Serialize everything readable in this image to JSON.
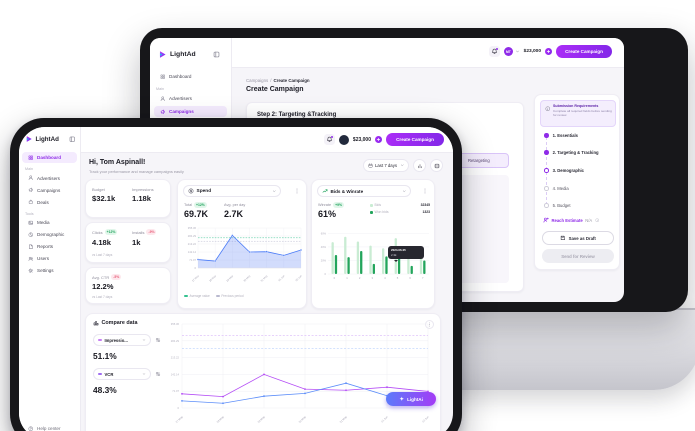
{
  "colors": {
    "accent_purple": "#8f2be8",
    "green": "#1fa35c",
    "red": "#e85d78",
    "area_blue": "#4a7bf7",
    "bar_light": "#c9ecd3",
    "bar_dark": "#23a55c",
    "line_purple": "#b44df5",
    "line_blue": "#5d8ef9"
  },
  "back": {
    "logo": "LightAd",
    "sidebar": {
      "dashboard": "Dashboard",
      "section_main": "Main",
      "advertisers": "Advertisers",
      "campaigns": "Campaigns"
    },
    "topbar": {
      "avatar": "MT",
      "balance": "$23,000",
      "create": "Create Campaign"
    },
    "breadcrumb": {
      "parent": "Campaigns",
      "sep": "/",
      "current": "Create Campaign"
    },
    "page_title": "Create Campaign",
    "step_title": "Step 2: Targeting &Tracking",
    "form_value": "Retargeting",
    "panel": {
      "title": "Submission Requirements",
      "desc": "Complete all required fields before sending for review.",
      "steps": [
        {
          "label": "1. Essentials",
          "state": "done"
        },
        {
          "label": "2. Targeting & Tracking",
          "state": "done"
        },
        {
          "label": "3. Demographic",
          "state": "current"
        },
        {
          "label": "4. Media",
          "state": "todo"
        },
        {
          "label": "5. Budget",
          "state": "todo"
        }
      ],
      "reach_label": "Reach Estimate",
      "reach_value": "N/A",
      "save_draft": "Save as Draft",
      "send_review": "Send for Review"
    }
  },
  "front": {
    "logo": "LightAd",
    "sidebar": {
      "dashboard": "Dashboard",
      "section_main": "Main",
      "advertisers": "Advertisers",
      "campaigns": "Campaigns",
      "deals": "Deals",
      "section_tools": "Tools",
      "media": "Media",
      "demographic": "Demographic",
      "reports": "Reports",
      "users": "Users",
      "settings": "Settings",
      "help": "Help center"
    },
    "topbar": {
      "balance": "$23,000",
      "create": "Create Campaign"
    },
    "greeting": {
      "title": "Hi, Tom Aspinall!",
      "subtitle": "Track your performance and manage campaigns easily"
    },
    "filter_range": "Last 7 days",
    "stats": {
      "budget_label": "Budget",
      "budget_value": "$32.1k",
      "impressions_label": "Impressions",
      "impressions_value": "1.18k",
      "clicks_label": "Clicks",
      "clicks_badge": "+12%",
      "clicks_value": "4.18k",
      "installs_label": "Installs",
      "installs_badge": "-9%",
      "installs_value": "1k",
      "vs_last": "vs Last 7 days",
      "ctr_label": "Avg. CTR",
      "ctr_badge": "-5%",
      "ctr_value": "12.2%"
    },
    "spend": {
      "title": "Spend",
      "total_label": "Total",
      "total_badge": "+12%",
      "total_value": "69.7K",
      "avg_label": "Avg. per day",
      "avg_value": "2.7K",
      "legend_avg": "Average value",
      "legend_prev": "Previous period"
    },
    "bids": {
      "title": "Bids & Winrate",
      "winrate_label": "Winrate",
      "winrate_badge": "+9%",
      "winrate_value": "61%",
      "legend_bids": "Bids",
      "bids_total": "32345",
      "legend_won": "Won bids",
      "won_total": "1323",
      "tooltip_date": "2024-06-05",
      "tooltip_value": "2.3k"
    },
    "compare": {
      "title": "Compare data",
      "metric1": "Impressio...",
      "metric1_value": "51.1%",
      "metric2": "VCR",
      "metric2_value": "48.3%",
      "ai_label": "LightAi"
    }
  },
  "chart_data": [
    {
      "id": "spend",
      "type": "area",
      "title": "Spend",
      "x": [
        "27 May",
        "28 May",
        "29 May",
        "30 May",
        "31 May",
        "01 Jun",
        "02 Jun"
      ],
      "values": [
        75,
        62,
        290,
        142,
        145,
        112,
        160
      ],
      "yticks": [
        0,
        71.07,
        142.14,
        213.22,
        284.29,
        355.36
      ],
      "ylim": [
        0,
        355.36
      ],
      "avg_line": 268,
      "prev_line": 238,
      "legend": [
        "Average value",
        "Previous period"
      ],
      "grid": true,
      "legend_position": "bottom"
    },
    {
      "id": "bids",
      "type": "bar",
      "title": "Bids & Winrate",
      "categories": [
        "0",
        "1",
        "2",
        "3",
        "4",
        "5",
        "6",
        "7"
      ],
      "series": [
        {
          "name": "Bids",
          "total": 32345,
          "values": [
            47,
            55,
            48,
            42,
            38,
            53,
            33,
            40
          ]
        },
        {
          "name": "Won bids",
          "total": 1323,
          "values": [
            28,
            25,
            34,
            15,
            26,
            30,
            12,
            20
          ]
        }
      ],
      "yticks": [
        0,
        20,
        40,
        60
      ],
      "ylim": [
        0,
        65
      ],
      "y_suffix": "%",
      "tooltip": {
        "date": "2024-06-05",
        "value": "2.3k"
      },
      "grid": true,
      "legend_position": "top-right"
    },
    {
      "id": "compare",
      "type": "line",
      "title": "Compare data",
      "x": [
        "27 May",
        "28 May",
        "29 May",
        "30 May",
        "31 May",
        "01 Jun",
        "02 Jun"
      ],
      "series": [
        {
          "name": "Impressions",
          "color": "#b44df5",
          "values": [
            60,
            48,
            142,
            80,
            75,
            88,
            70
          ]
        },
        {
          "name": "VCR",
          "color": "#5d8ef9",
          "values": [
            30,
            20,
            50,
            62,
            105,
            52,
            64
          ]
        }
      ],
      "yticks": [
        0,
        71.07,
        142.14,
        213.22,
        284.29,
        355.36
      ],
      "ylim": [
        0,
        355.36
      ],
      "ref_lines": [
        {
          "y": 307,
          "color": "#cfa6f7"
        },
        {
          "y": 252,
          "color": "#a8c4fb"
        }
      ],
      "grid": true
    }
  ]
}
